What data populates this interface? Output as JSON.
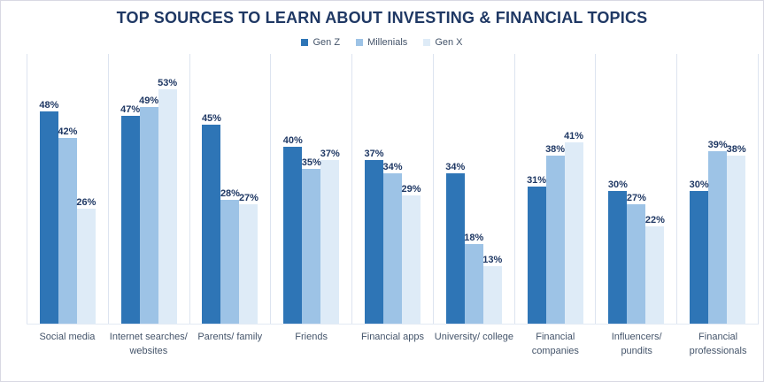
{
  "title": "TOP SOURCES TO LEARN ABOUT INVESTING & FINANCIAL TOPICS",
  "colors": {
    "title_text": "#1f3864",
    "value_label_text": "#1f3864",
    "axis_label_text": "#44546a",
    "column_separator": "#dde4f0",
    "baseline": "#e3eaf4",
    "frame_border": "#d9d9e3",
    "background": "#ffffff"
  },
  "chart_data": {
    "type": "bar",
    "title": "TOP SOURCES TO LEARN ABOUT INVESTING & FINANCIAL TOPICS",
    "xlabel": "",
    "ylabel": "",
    "ylim": [
      0,
      61
    ],
    "value_suffix": "%",
    "grid": "vertical-category-separators",
    "legend_position": "top",
    "categories": [
      "Social media",
      "Internet searches/ websites",
      "Parents/ family",
      "Friends",
      "Financial apps",
      "University/ college",
      "Financial companies",
      "Influencers/ pundits",
      "Financial professionals"
    ],
    "series": [
      {
        "name": "Gen Z",
        "color": "#2e75b6",
        "values": [
          48,
          47,
          45,
          40,
          37,
          34,
          31,
          30,
          30
        ]
      },
      {
        "name": "Millenials",
        "color": "#9dc3e6",
        "values": [
          42,
          49,
          28,
          35,
          34,
          18,
          38,
          27,
          39
        ]
      },
      {
        "name": "Gen X",
        "color": "#deebf7",
        "values": [
          26,
          53,
          27,
          37,
          29,
          13,
          41,
          22,
          38
        ]
      }
    ]
  }
}
